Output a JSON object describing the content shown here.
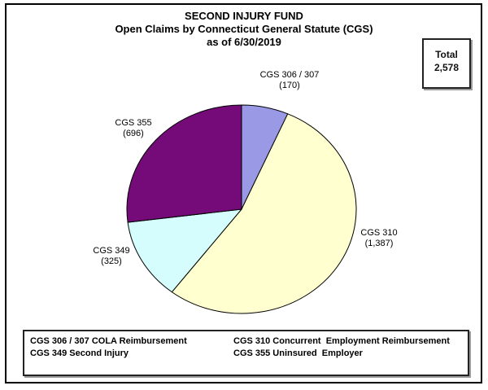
{
  "title": {
    "line1": "SECOND INJURY FUND",
    "line2": "Open Claims by Connecticut General Statute (CGS)",
    "line3": "as of 6/30/2019"
  },
  "total_box": {
    "label": "Total",
    "value": "2,578"
  },
  "chart_data": {
    "type": "pie",
    "title": "SECOND INJURY FUND - Open Claims by Connecticut General Statute (CGS) as of 6/30/2019",
    "categories": [
      "CGS 306 / 307",
      "CGS 310",
      "CGS 349",
      "CGS 355"
    ],
    "values": [
      170,
      1387,
      325,
      696
    ],
    "total": 2578,
    "colors": [
      "#9999E6",
      "#FFFFCF",
      "#D5FDFE",
      "#740B78"
    ],
    "outline_color": "#000000",
    "start_angle_deg": 0,
    "direction": "clockwise",
    "labels": [
      {
        "name": "CGS 306 / 307",
        "value": "(170)"
      },
      {
        "name": "CGS 310",
        "value": "(1,387)"
      },
      {
        "name": "CGS 349",
        "value": "(325)"
      },
      {
        "name": "CGS 355",
        "value": "(696)"
      }
    ]
  },
  "legend": {
    "items": [
      "CGS 306 / 307 COLA Reimbursement",
      "CGS 349 Second Injury",
      "CGS 310 Concurrent  Employment Reimbursement",
      "CGS 355 Uninsured  Employer"
    ]
  }
}
